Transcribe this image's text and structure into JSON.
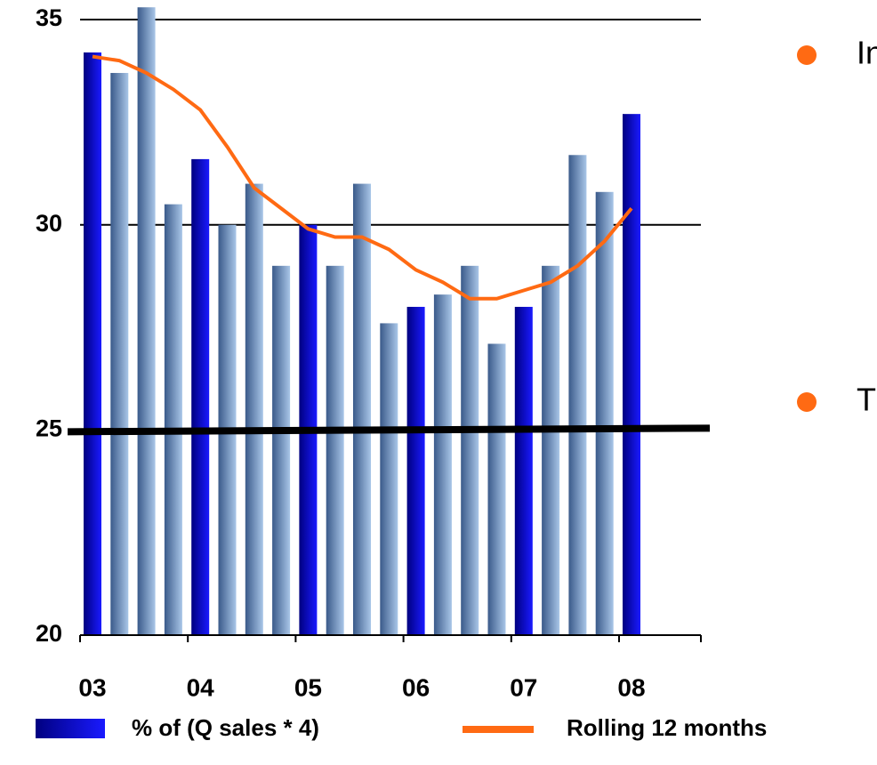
{
  "chart_data": {
    "type": "bar",
    "categories": [
      "03",
      null,
      null,
      null,
      "04",
      null,
      null,
      null,
      "05",
      null,
      null,
      null,
      "06",
      null,
      null,
      null,
      "07",
      null,
      null,
      null,
      "08"
    ],
    "series": [
      {
        "name": "% of (Q sales * 4)",
        "type": "bar",
        "color": "#1a1aff",
        "secondary_color": "#a9c6e8",
        "values": [
          34.2,
          33.7,
          35.3,
          30.5,
          31.6,
          30.0,
          31.0,
          29.0,
          30.0,
          29.0,
          31.0,
          27.6,
          28.0,
          28.3,
          29.0,
          27.1,
          28.0,
          29.0,
          31.7,
          30.8,
          32.7
        ]
      },
      {
        "name": "Rolling 12 months",
        "type": "line",
        "color": "#ff6a13",
        "values": [
          34.1,
          34.0,
          33.7,
          33.3,
          32.8,
          31.9,
          30.9,
          30.4,
          29.9,
          29.7,
          29.7,
          29.4,
          28.9,
          28.6,
          28.2,
          28.2,
          28.4,
          28.6,
          29.0,
          29.6,
          30.4
        ]
      }
    ],
    "ylim": [
      20,
      35.5
    ],
    "yticks": [
      20,
      25,
      30,
      35
    ],
    "grid": true,
    "reference_line": 25,
    "annotations": [
      "In",
      "T"
    ],
    "annotation_color": "#ff6a13",
    "legend": "bottom"
  }
}
